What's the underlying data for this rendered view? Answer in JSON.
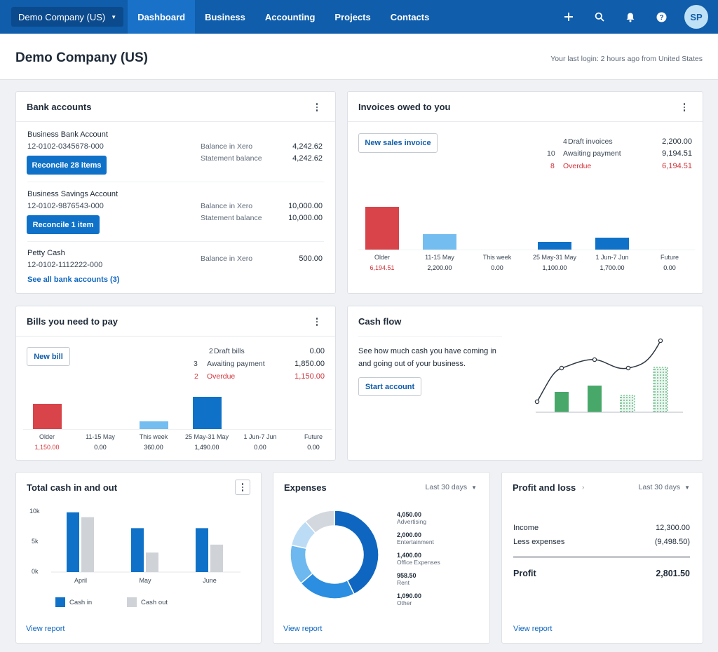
{
  "topbar": {
    "org": "Demo Company (US)",
    "nav": [
      "Dashboard",
      "Business",
      "Accounting",
      "Projects",
      "Contacts"
    ],
    "avatar": "SP",
    "icons": [
      "plus-icon",
      "search-icon",
      "bell-icon",
      "help-icon"
    ]
  },
  "header": {
    "title": "Demo Company (US)",
    "last_login": "Your last login: 2 hours ago from United States"
  },
  "bank": {
    "title": "Bank accounts",
    "accounts": [
      {
        "name": "Business Bank Account",
        "number": "12-0102-0345678-000",
        "button": "Reconcile 28 items",
        "rows": [
          {
            "label": "Balance in Xero",
            "value": "4,242.62"
          },
          {
            "label": "Statement balance",
            "value": "4,242.62"
          }
        ]
      },
      {
        "name": "Business Savings Account",
        "number": "12-0102-9876543-000",
        "button": "Reconcile 1 item",
        "rows": [
          {
            "label": "Balance in Xero",
            "value": "10,000.00"
          },
          {
            "label": "Statement balance",
            "value": "10,000.00"
          }
        ]
      },
      {
        "name": "Petty Cash",
        "number": "12-0102-1112222-000",
        "button": "",
        "rows": [
          {
            "label": "Balance in Xero",
            "value": "500.00"
          }
        ]
      }
    ],
    "see_all": "See all bank accounts (3)"
  },
  "invoices": {
    "title": "Invoices owed to you",
    "button": "New sales invoice",
    "summary": [
      {
        "count": "4",
        "label": "Draft invoices",
        "value": "2,200.00"
      },
      {
        "count": "10",
        "label": "Awaiting payment",
        "value": "9,194.51"
      },
      {
        "count": "8",
        "label": "Overdue",
        "value": "6,194.51"
      }
    ],
    "buckets": [
      "Older",
      "11-15 May",
      "This week",
      "25 May-31 May",
      "1 Jun-7 Jun",
      "Future"
    ],
    "amounts": [
      "6,194.51",
      "2,200.00",
      "0.00",
      "1,100.00",
      "1,700.00",
      "0.00"
    ],
    "values": [
      6194.51,
      2200.0,
      0,
      1100.0,
      1700.0,
      0
    ],
    "colors": [
      "#d9434a",
      "#74bdf0",
      "#0f72c8",
      "#0f72c8",
      "#0f72c8",
      "#0f72c8"
    ]
  },
  "bills": {
    "title": "Bills you need to pay",
    "button": "New bill",
    "summary": [
      {
        "count": "2",
        "label": "Draft bills",
        "value": "0.00"
      },
      {
        "count": "3",
        "label": "Awaiting payment",
        "value": "1,850.00"
      },
      {
        "count": "2",
        "label": "Overdue",
        "value": "1,150.00"
      }
    ],
    "buckets": [
      "Older",
      "11-15 May",
      "This week",
      "25 May-31 May",
      "1 Jun-7 Jun",
      "Future"
    ],
    "amounts": [
      "1,150.00",
      "0.00",
      "360.00",
      "1,490.00",
      "0.00",
      "0.00"
    ],
    "values": [
      1150.0,
      0,
      360.0,
      1490.0,
      0,
      0
    ],
    "colors": [
      "#d9434a",
      "#74bdf0",
      "#74bdf0",
      "#0f72c8",
      "#0f72c8",
      "#0f72c8"
    ]
  },
  "cashflow": {
    "title": "Cash flow",
    "description_1": "See how much cash you have coming in",
    "description_2": "and going out of your business.",
    "button": "Start account"
  },
  "total_cash": {
    "title": "Total cash in and out",
    "yticks": [
      "10k",
      "5k",
      "0k"
    ],
    "legend_in": "Cash in",
    "legend_out": "Cash out",
    "link": "View report",
    "chart_data": {
      "type": "bar",
      "categories": [
        "April",
        "May",
        "June"
      ],
      "series": [
        {
          "name": "Cash in",
          "values": [
            9800,
            7200,
            7200
          ]
        },
        {
          "name": "Cash out",
          "values": [
            9000,
            3200,
            4500
          ]
        }
      ],
      "ylim": [
        0,
        10000
      ],
      "colors": [
        "#0f72c8",
        "#cfd2d6"
      ]
    }
  },
  "expenses": {
    "title": "Expenses",
    "period": "Last 30 days",
    "link": "View report",
    "chart_data": {
      "type": "pie",
      "categories": [
        "Advertising",
        "Entertainment",
        "Office Expenses",
        "Rent",
        "Other"
      ],
      "values": [
        4050.0,
        2000.0,
        1400.0,
        958.5,
        1090.0
      ],
      "labels": [
        "4,050.00",
        "2,000.00",
        "1,400.00",
        "958.50",
        "1,090.00"
      ],
      "colors": [
        "#0f66c0",
        "#2b8ee0",
        "#6db8ef",
        "#bcdcf6",
        "#d3d8de"
      ]
    }
  },
  "pnl": {
    "title": "Profit and loss",
    "period": "Last 30 days",
    "rows": [
      {
        "label": "Income",
        "value": "12,300.00"
      },
      {
        "label": "Less expenses",
        "value": "(9,498.50)"
      }
    ],
    "profit_label": "Profit",
    "profit_value": "2,801.50",
    "link": "View report"
  },
  "colors": {
    "brand": "#0f5dab",
    "primary_button": "#0f72c8",
    "overdue": "#d0333a",
    "green": "#48a86a"
  }
}
